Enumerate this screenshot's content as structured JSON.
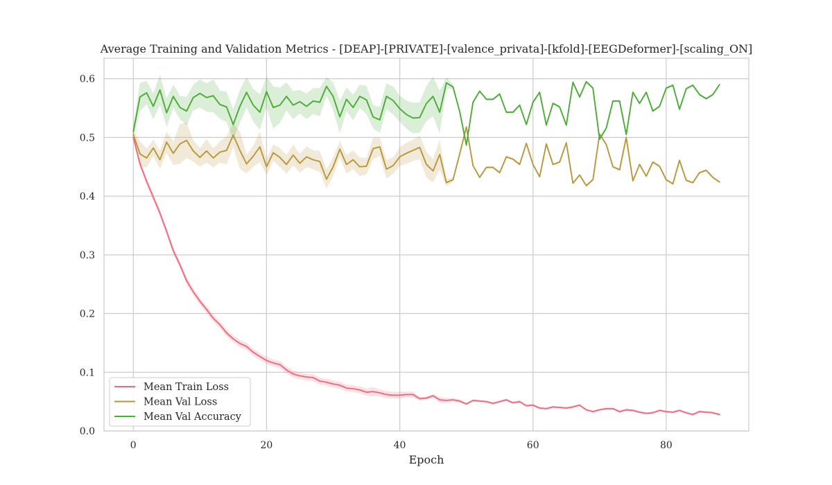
{
  "chart_data": {
    "type": "line",
    "title": "Average Training and Validation Metrics - [DEAP]-[PRIVATE]-[valence_privata]-[kfold]-[EEGDeformer]-[scaling_ON]",
    "xlabel": "Epoch",
    "ylabel": "",
    "xlim": [
      -4.4,
      92.4
    ],
    "ylim": [
      0.0,
      0.635
    ],
    "xticks": [
      0,
      20,
      40,
      60,
      80
    ],
    "xtick_labels": [
      "0",
      "20",
      "40",
      "60",
      "80"
    ],
    "yticks": [
      0.0,
      0.1,
      0.2,
      0.3,
      0.4,
      0.5,
      0.6
    ],
    "ytick_labels": [
      "0.0",
      "0.1",
      "0.2",
      "0.3",
      "0.4",
      "0.5",
      "0.6"
    ],
    "grid": true,
    "legend_position": "lower-left",
    "x": [
      0,
      1,
      2,
      3,
      4,
      5,
      6,
      7,
      8,
      9,
      10,
      11,
      12,
      13,
      14,
      15,
      16,
      17,
      18,
      19,
      20,
      21,
      22,
      23,
      24,
      25,
      26,
      27,
      28,
      29,
      30,
      31,
      32,
      33,
      34,
      35,
      36,
      37,
      38,
      39,
      40,
      41,
      42,
      43,
      44,
      45,
      46,
      47,
      48,
      49,
      50,
      51,
      52,
      53,
      54,
      55,
      56,
      57,
      58,
      59,
      60,
      61,
      62,
      63,
      64,
      65,
      66,
      67,
      68,
      69,
      70,
      71,
      72,
      73,
      74,
      75,
      76,
      77,
      78,
      79,
      80,
      81,
      82,
      83,
      84,
      85,
      86,
      87,
      88
    ],
    "series": [
      {
        "name": "Mean Train Loss",
        "color": "#f0697f",
        "values": [
          0.5,
          0.455,
          0.425,
          0.398,
          0.371,
          0.34,
          0.307,
          0.283,
          0.256,
          0.237,
          0.221,
          0.207,
          0.192,
          0.181,
          0.167,
          0.157,
          0.149,
          0.144,
          0.134,
          0.127,
          0.12,
          0.116,
          0.113,
          0.104,
          0.097,
          0.094,
          0.092,
          0.091,
          0.085,
          0.083,
          0.08,
          0.078,
          0.073,
          0.072,
          0.07,
          0.066,
          0.067,
          0.065,
          0.062,
          0.061,
          0.061,
          0.062,
          0.062,
          0.055,
          0.056,
          0.06,
          0.053,
          0.052,
          0.053,
          0.051,
          0.046,
          0.052,
          0.051,
          0.05,
          0.047,
          0.05,
          0.053,
          0.048,
          0.05,
          0.043,
          0.044,
          0.039,
          0.038,
          0.041,
          0.04,
          0.039,
          0.041,
          0.044,
          0.036,
          0.033,
          0.036,
          0.038,
          0.038,
          0.033,
          0.036,
          0.035,
          0.032,
          0.03,
          0.031,
          0.035,
          0.033,
          0.032,
          0.035,
          0.031,
          0.028,
          0.033,
          0.032,
          0.031,
          0.028
        ],
        "band": [
          0.003,
          0.006,
          0.006,
          0.006,
          0.006,
          0.006,
          0.006,
          0.006,
          0.006,
          0.006,
          0.006,
          0.006,
          0.006,
          0.006,
          0.006,
          0.006,
          0.006,
          0.006,
          0.006,
          0.006,
          0.006,
          0.006,
          0.006,
          0.006,
          0.006,
          0.006,
          0.006,
          0.006,
          0.006,
          0.006,
          0.006,
          0.006,
          0.006,
          0.006,
          0.006,
          0.006,
          0.008,
          0.006,
          0.006,
          0.006,
          0.006,
          0.005,
          0.005,
          0.003,
          0.003,
          0.003,
          0.005,
          0.004,
          0.003,
          0.003,
          0.002,
          0.002,
          0.002,
          0.002,
          0.002,
          0.002,
          0.002,
          0.002,
          0.002,
          0.002,
          0.002,
          0.002,
          0.002,
          0.002,
          0.002,
          0.002,
          0.002,
          0.002,
          0.002,
          0.002,
          0.002,
          0.002,
          0.002,
          0.002,
          0.002,
          0.002,
          0.002,
          0.002,
          0.002,
          0.002,
          0.002,
          0.002,
          0.002,
          0.002,
          0.002,
          0.002,
          0.002,
          0.002,
          0.002
        ]
      },
      {
        "name": "Mean Val Loss",
        "color": "#b8963a",
        "values": [
          0.505,
          0.472,
          0.465,
          0.482,
          0.462,
          0.492,
          0.473,
          0.489,
          0.495,
          0.477,
          0.466,
          0.477,
          0.465,
          0.475,
          0.478,
          0.504,
          0.478,
          0.455,
          0.468,
          0.484,
          0.45,
          0.474,
          0.466,
          0.454,
          0.47,
          0.456,
          0.467,
          0.462,
          0.459,
          0.429,
          0.45,
          0.48,
          0.454,
          0.462,
          0.45,
          0.451,
          0.481,
          0.484,
          0.446,
          0.452,
          0.467,
          0.473,
          0.478,
          0.483,
          0.454,
          0.443,
          0.471,
          0.423,
          0.428,
          0.472,
          0.518,
          0.452,
          0.432,
          0.449,
          0.449,
          0.44,
          0.467,
          0.463,
          0.454,
          0.49,
          0.454,
          0.433,
          0.489,
          0.454,
          0.458,
          0.491,
          0.422,
          0.436,
          0.418,
          0.428,
          0.506,
          0.488,
          0.45,
          0.445,
          0.5,
          0.426,
          0.454,
          0.434,
          0.458,
          0.451,
          0.428,
          0.421,
          0.461,
          0.427,
          0.423,
          0.44,
          0.444,
          0.432,
          0.424
        ],
        "band": [
          0.008,
          0.022,
          0.016,
          0.014,
          0.016,
          0.018,
          0.02,
          0.034,
          0.03,
          0.018,
          0.016,
          0.02,
          0.016,
          0.018,
          0.024,
          0.02,
          0.032,
          0.016,
          0.018,
          0.026,
          0.014,
          0.014,
          0.016,
          0.016,
          0.018,
          0.016,
          0.018,
          0.016,
          0.018,
          0.016,
          0.016,
          0.014,
          0.016,
          0.016,
          0.016,
          0.014,
          0.018,
          0.016,
          0.016,
          0.014,
          0.016,
          0.018,
          0.018,
          0.02,
          0.022,
          0.02,
          0.026,
          0.006,
          0.004,
          0.002,
          0.002,
          0.002,
          0.002,
          0.002,
          0.002,
          0.002,
          0.002,
          0.002,
          0.002,
          0.002,
          0.002,
          0.002,
          0.002,
          0.002,
          0.002,
          0.002,
          0.002,
          0.002,
          0.002,
          0.002,
          0.002,
          0.002,
          0.002,
          0.002,
          0.002,
          0.002,
          0.002,
          0.002,
          0.002,
          0.002,
          0.002,
          0.002,
          0.002,
          0.002,
          0.002,
          0.002,
          0.002,
          0.002,
          0.002
        ]
      },
      {
        "name": "Mean Val Accuracy",
        "color": "#4aab35",
        "values": [
          0.51,
          0.569,
          0.576,
          0.553,
          0.581,
          0.542,
          0.57,
          0.551,
          0.545,
          0.568,
          0.575,
          0.568,
          0.571,
          0.556,
          0.552,
          0.522,
          0.553,
          0.577,
          0.555,
          0.543,
          0.578,
          0.551,
          0.555,
          0.57,
          0.555,
          0.561,
          0.553,
          0.562,
          0.56,
          0.587,
          0.57,
          0.535,
          0.565,
          0.551,
          0.57,
          0.564,
          0.535,
          0.53,
          0.57,
          0.563,
          0.549,
          0.539,
          0.533,
          0.534,
          0.558,
          0.57,
          0.543,
          0.593,
          0.586,
          0.544,
          0.487,
          0.56,
          0.579,
          0.565,
          0.565,
          0.574,
          0.543,
          0.543,
          0.555,
          0.522,
          0.56,
          0.577,
          0.521,
          0.558,
          0.552,
          0.521,
          0.594,
          0.569,
          0.595,
          0.584,
          0.497,
          0.516,
          0.562,
          0.562,
          0.505,
          0.577,
          0.558,
          0.577,
          0.545,
          0.553,
          0.584,
          0.589,
          0.548,
          0.583,
          0.589,
          0.573,
          0.566,
          0.573,
          0.59
        ],
        "band": [
          0.01,
          0.024,
          0.02,
          0.022,
          0.026,
          0.024,
          0.02,
          0.02,
          0.024,
          0.022,
          0.024,
          0.024,
          0.028,
          0.024,
          0.026,
          0.026,
          0.028,
          0.026,
          0.028,
          0.03,
          0.026,
          0.036,
          0.03,
          0.024,
          0.024,
          0.02,
          0.022,
          0.022,
          0.024,
          0.016,
          0.024,
          0.028,
          0.02,
          0.022,
          0.02,
          0.024,
          0.02,
          0.022,
          0.022,
          0.024,
          0.022,
          0.024,
          0.026,
          0.026,
          0.03,
          0.034,
          0.036,
          0.01,
          0.004,
          0.002,
          0.002,
          0.002,
          0.002,
          0.002,
          0.002,
          0.002,
          0.002,
          0.002,
          0.002,
          0.002,
          0.002,
          0.002,
          0.002,
          0.002,
          0.002,
          0.002,
          0.002,
          0.002,
          0.002,
          0.002,
          0.002,
          0.002,
          0.002,
          0.002,
          0.002,
          0.002,
          0.002,
          0.002,
          0.002,
          0.002,
          0.002,
          0.002,
          0.002,
          0.002,
          0.002,
          0.002,
          0.002,
          0.002,
          0.002
        ]
      }
    ]
  }
}
